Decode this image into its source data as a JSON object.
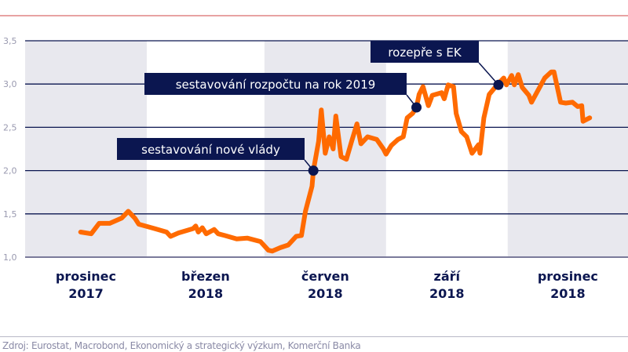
{
  "chart_data": {
    "type": "line",
    "title": "",
    "xlabel": "",
    "ylabel": "",
    "ylim": [
      1.0,
      3.5
    ],
    "yticks": [
      "1,0",
      "1,5",
      "2,0",
      "2,5",
      "3,0",
      "3,5"
    ],
    "ytick_values": [
      1.0,
      1.5,
      2.0,
      2.5,
      3.0,
      3.5
    ],
    "xlim": [
      "2017-11-01",
      "2019-01-31"
    ],
    "grid": "horizontal",
    "shaded_bands": [
      {
        "from": "2017-11-01",
        "to": "2018-02-01",
        "label_line1": "prosinec",
        "label_line2": "2017",
        "shaded": true
      },
      {
        "from": "2018-02-01",
        "to": "2018-05-01",
        "label_line1": "březen",
        "label_line2": "2018",
        "shaded": false
      },
      {
        "from": "2018-05-01",
        "to": "2018-08-01",
        "label_line1": "červen",
        "label_line2": "2018",
        "shaded": true
      },
      {
        "from": "2018-08-01",
        "to": "2018-11-01",
        "label_line1": "září",
        "label_line2": "2018",
        "shaded": false
      },
      {
        "from": "2018-11-01",
        "to": "2019-01-31",
        "label_line1": "prosinec",
        "label_line2": "2018",
        "shaded": true
      }
    ],
    "series": [
      {
        "color": "#ff6a00",
        "points": [
          [
            "2017-12-13",
            1.29
          ],
          [
            "2017-12-21",
            1.27
          ],
          [
            "2017-12-27",
            1.39
          ],
          [
            "2018-01-04",
            1.39
          ],
          [
            "2018-01-13",
            1.45
          ],
          [
            "2018-01-18",
            1.53
          ],
          [
            "2018-01-23",
            1.45
          ],
          [
            "2018-01-26",
            1.38
          ],
          [
            "2018-02-07",
            1.33
          ],
          [
            "2018-02-16",
            1.29
          ],
          [
            "2018-02-19",
            1.24
          ],
          [
            "2018-02-25",
            1.28
          ],
          [
            "2018-03-08",
            1.33
          ],
          [
            "2018-03-10",
            1.36
          ],
          [
            "2018-03-12",
            1.29
          ],
          [
            "2018-03-15",
            1.34
          ],
          [
            "2018-03-18",
            1.27
          ],
          [
            "2018-03-24",
            1.32
          ],
          [
            "2018-03-27",
            1.27
          ],
          [
            "2018-04-01",
            1.25
          ],
          [
            "2018-04-10",
            1.21
          ],
          [
            "2018-04-18",
            1.22
          ],
          [
            "2018-04-28",
            1.18
          ],
          [
            "2018-05-04",
            1.08
          ],
          [
            "2018-05-07",
            1.07
          ],
          [
            "2018-05-13",
            1.11
          ],
          [
            "2018-05-19",
            1.14
          ],
          [
            "2018-05-25",
            1.24
          ],
          [
            "2018-05-29",
            1.25
          ],
          [
            "2018-06-01",
            1.53
          ],
          [
            "2018-06-06",
            1.82
          ],
          [
            "2018-06-07",
            2.0
          ],
          [
            "2018-06-11",
            2.34
          ],
          [
            "2018-06-13",
            2.7
          ],
          [
            "2018-06-16",
            2.2
          ],
          [
            "2018-06-19",
            2.39
          ],
          [
            "2018-06-22",
            2.25
          ],
          [
            "2018-06-24",
            2.63
          ],
          [
            "2018-06-28",
            2.16
          ],
          [
            "2018-07-02",
            2.13
          ],
          [
            "2018-07-06",
            2.34
          ],
          [
            "2018-07-10",
            2.54
          ],
          [
            "2018-07-13",
            2.31
          ],
          [
            "2018-07-18",
            2.39
          ],
          [
            "2018-07-25",
            2.36
          ],
          [
            "2018-07-30",
            2.25
          ],
          [
            "2018-08-01",
            2.19
          ],
          [
            "2018-08-05",
            2.29
          ],
          [
            "2018-08-10",
            2.36
          ],
          [
            "2018-08-14",
            2.39
          ],
          [
            "2018-08-17",
            2.61
          ],
          [
            "2018-08-21",
            2.66
          ],
          [
            "2018-08-24",
            2.73
          ],
          [
            "2018-08-26",
            2.88
          ],
          [
            "2018-08-29",
            2.97
          ],
          [
            "2018-09-02",
            2.75
          ],
          [
            "2018-09-05",
            2.87
          ],
          [
            "2018-09-12",
            2.9
          ],
          [
            "2018-09-14",
            2.83
          ],
          [
            "2018-09-17",
            2.99
          ],
          [
            "2018-09-21",
            2.97
          ],
          [
            "2018-09-23",
            2.66
          ],
          [
            "2018-09-27",
            2.45
          ],
          [
            "2018-10-01",
            2.39
          ],
          [
            "2018-10-05",
            2.2
          ],
          [
            "2018-10-10",
            2.3
          ],
          [
            "2018-10-11",
            2.2
          ],
          [
            "2018-10-14",
            2.61
          ],
          [
            "2018-10-18",
            2.88
          ],
          [
            "2018-10-24",
            2.99
          ],
          [
            "2018-10-29",
            3.07
          ],
          [
            "2018-10-31",
            2.99
          ],
          [
            "2018-11-04",
            3.1
          ],
          [
            "2018-11-06",
            2.99
          ],
          [
            "2018-11-09",
            3.11
          ],
          [
            "2018-11-12",
            2.96
          ],
          [
            "2018-11-17",
            2.87
          ],
          [
            "2018-11-19",
            2.79
          ],
          [
            "2018-11-24",
            2.93
          ],
          [
            "2018-11-29",
            3.07
          ],
          [
            "2018-12-04",
            3.14
          ],
          [
            "2018-12-06",
            3.14
          ],
          [
            "2018-12-11",
            2.79
          ],
          [
            "2018-12-15",
            2.78
          ],
          [
            "2018-12-20",
            2.79
          ],
          [
            "2018-12-24",
            2.74
          ],
          [
            "2018-12-27",
            2.75
          ],
          [
            "2018-12-28",
            2.57
          ],
          [
            "2019-01-02",
            2.61
          ]
        ]
      }
    ],
    "annotations": [
      {
        "text": "sestavování nové vlády",
        "date": "2018-06-07",
        "value": 2.0
      },
      {
        "text": "sestavování rozpočtu na rok 2019",
        "date": "2018-08-24",
        "value": 2.73
      },
      {
        "text": "rozepře s EK",
        "date": "2018-10-25",
        "value": 2.99
      }
    ]
  },
  "colors": {
    "navy": "#0b1650",
    "orange": "#ff6a00",
    "band": "#e8e8ee",
    "axis_text": "#9a9ab0"
  },
  "footer": {
    "source": "Zdroj: Eurostat, Macrobond, Ekonomický a strategický výzkum, Komerční Banka"
  }
}
